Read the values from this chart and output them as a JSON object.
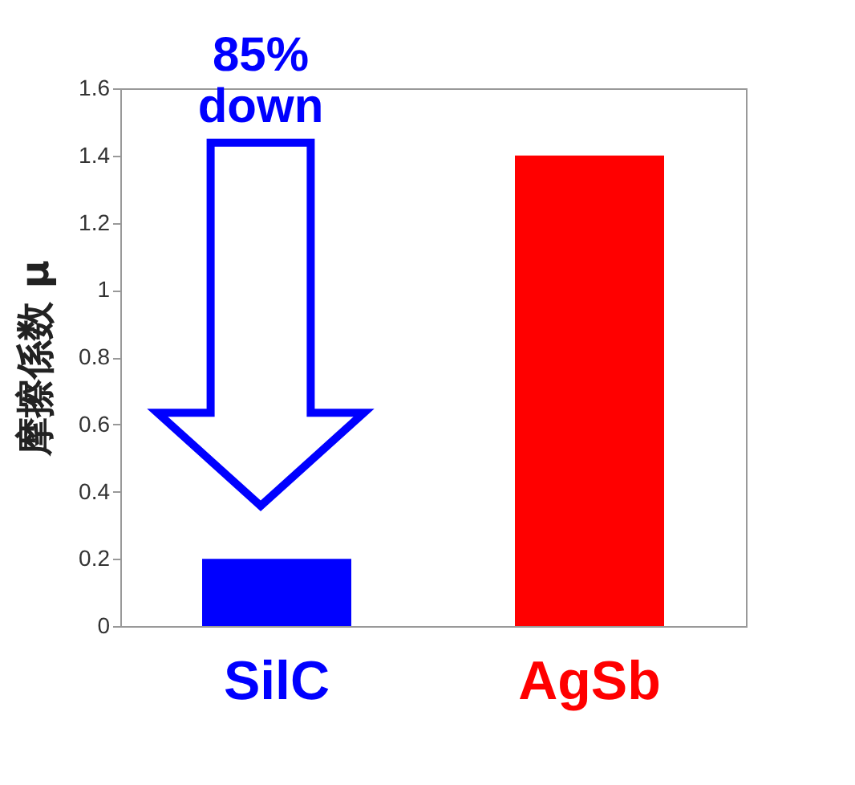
{
  "chart_data": {
    "type": "bar",
    "ylabel": "摩擦係数 μ",
    "categories": [
      "SilC",
      "AgSb"
    ],
    "values": [
      0.2,
      1.4
    ],
    "colors": [
      "#0000ff",
      "#ff0000"
    ],
    "ylim": [
      0,
      1.6
    ],
    "yticks": [
      0,
      0.2,
      0.4,
      0.6,
      0.8,
      1,
      1.2,
      1.4,
      1.6
    ],
    "annotations": [
      "85% down"
    ]
  }
}
